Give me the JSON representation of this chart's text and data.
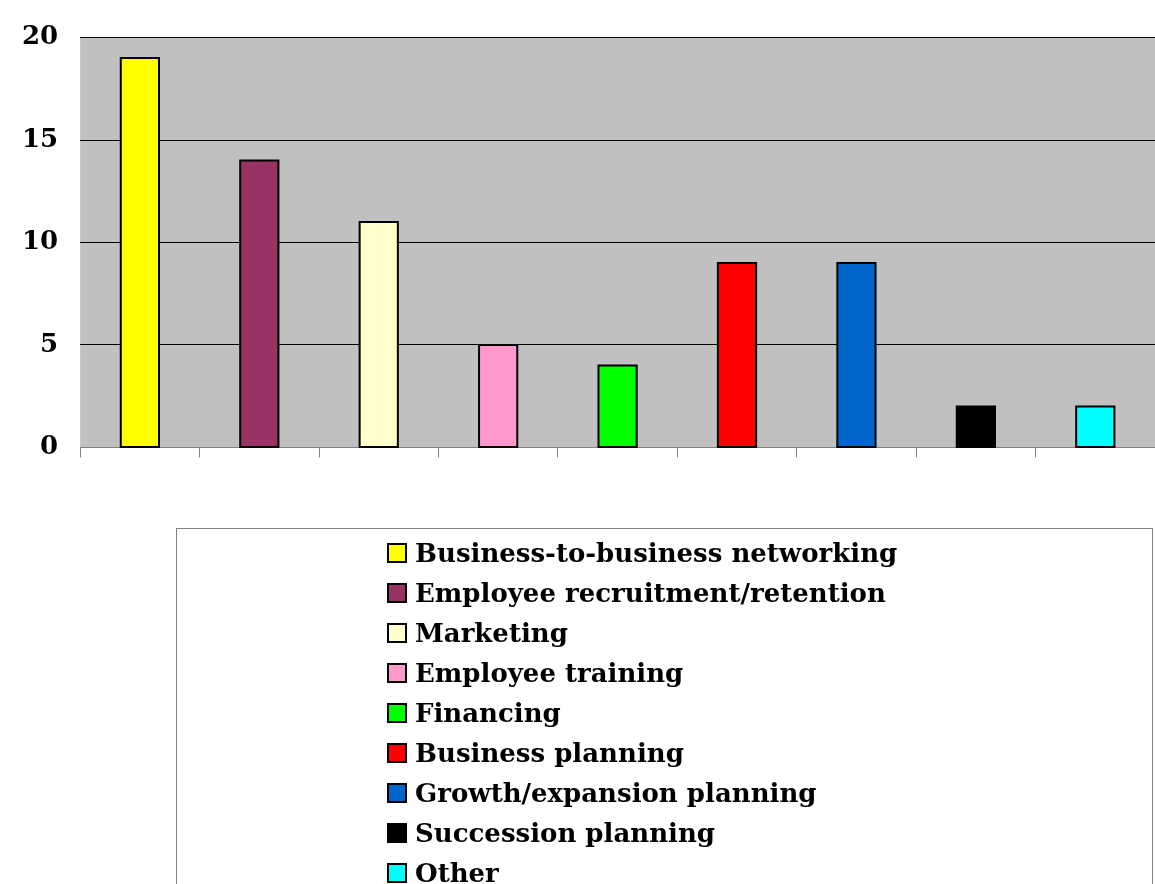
{
  "chart_data": {
    "type": "bar",
    "categories": [
      null,
      null,
      null,
      null,
      null,
      null,
      null,
      null,
      null
    ],
    "series": [
      {
        "name": "Business-to-business networking",
        "color": "#ffff00",
        "values": [
          19,
          null,
          null,
          null,
          null,
          null,
          null,
          null,
          null
        ]
      },
      {
        "name": "Employee recruitment/retention",
        "color": "#993366",
        "values": [
          null,
          14,
          null,
          null,
          null,
          null,
          null,
          null,
          null
        ]
      },
      {
        "name": "Marketing",
        "color": "#ffffcc",
        "values": [
          null,
          null,
          11,
          null,
          null,
          null,
          null,
          null,
          null
        ]
      },
      {
        "name": "Employee training",
        "color": "#ff99cc",
        "values": [
          null,
          null,
          null,
          5,
          null,
          null,
          null,
          null,
          null
        ]
      },
      {
        "name": "Financing",
        "color": "#00ff00",
        "values": [
          null,
          null,
          null,
          null,
          4,
          null,
          null,
          null,
          null
        ]
      },
      {
        "name": "Business planning",
        "color": "#ff0000",
        "values": [
          null,
          null,
          null,
          null,
          null,
          9,
          null,
          null,
          null
        ]
      },
      {
        "name": "Growth/expansion planning",
        "color": "#0066cc",
        "values": [
          null,
          null,
          null,
          null,
          null,
          null,
          9,
          null,
          null
        ]
      },
      {
        "name": "Succession planning",
        "color": "#000000",
        "values": [
          null,
          null,
          null,
          null,
          null,
          null,
          null,
          2,
          null
        ]
      },
      {
        "name": "Other",
        "color": "#00ffff",
        "values": [
          null,
          null,
          null,
          null,
          null,
          null,
          null,
          null,
          2
        ]
      }
    ],
    "ylim": [
      0,
      20
    ],
    "yticks": [
      0,
      5,
      10,
      15,
      20
    ],
    "grid": "y",
    "legend": "bottom",
    "tick_labels": "y"
  }
}
